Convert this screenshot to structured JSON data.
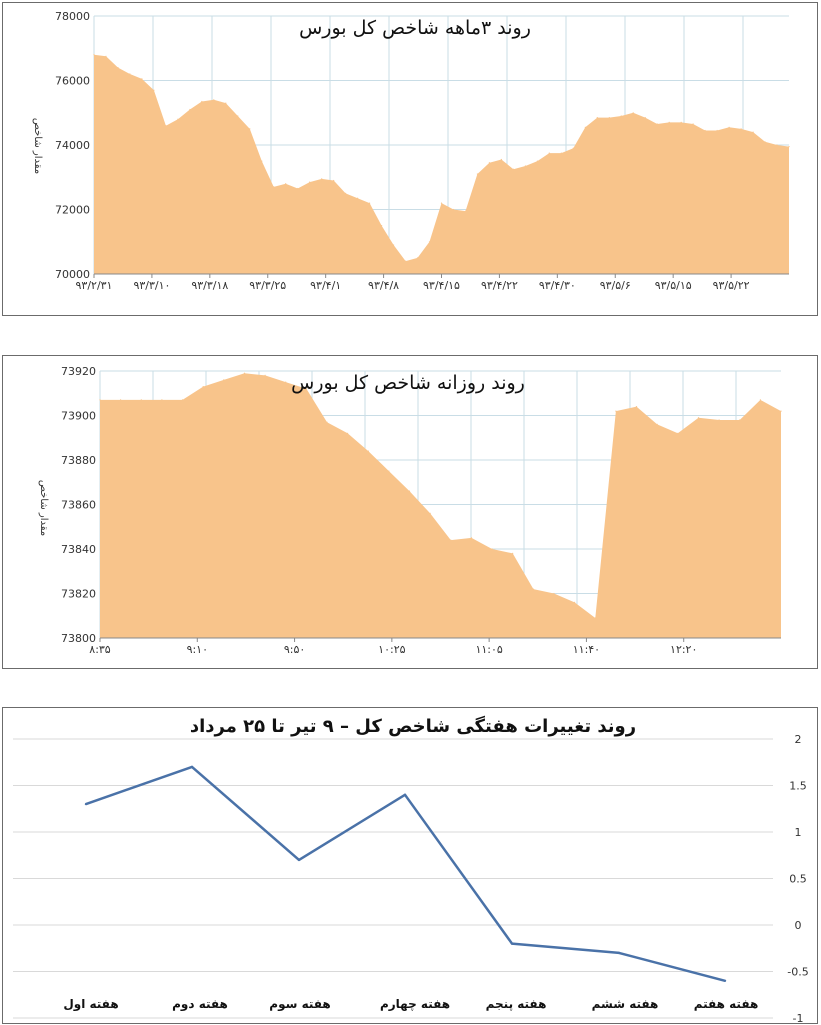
{
  "chart_data": [
    {
      "type": "area",
      "title": "روند ۳ماهه شاخص کل بورس",
      "ylabel": "مقدار شاخص",
      "xlabel": "",
      "ylim": [
        70000,
        78000
      ],
      "y_ticks": [
        "70000",
        "72000",
        "74000",
        "76000",
        "78000"
      ],
      "x_ticks": [
        "۹۳/۲/۳۱",
        "۹۳/۳/۱۰",
        "۹۳/۳/۱۸",
        "۹۳/۳/۲۵",
        "۹۳/۴/۱",
        "۹۳/۴/۸",
        "۹۳/۴/۱۵",
        "۹۳/۴/۲۲",
        "۹۳/۴/۳۰",
        "۹۳/۵/۶",
        "۹۳/۵/۱۵",
        "۹۳/۵/۲۲"
      ],
      "grid": true,
      "fill_color": "#f8c48b",
      "values": [
        76800,
        76750,
        76400,
        76200,
        76050,
        75700,
        74600,
        74800,
        75100,
        75350,
        75400,
        75300,
        74900,
        74500,
        73500,
        72700,
        72800,
        72650,
        72850,
        72950,
        72900,
        72500,
        72350,
        72200,
        71500,
        70900,
        70400,
        70500,
        71000,
        72200,
        72000,
        71950,
        73100,
        73450,
        73550,
        73250,
        73350,
        73500,
        73750,
        73750,
        73900,
        74550,
        74850,
        74850,
        74900,
        75000,
        74850,
        74650,
        74700,
        74700,
        74650,
        74450,
        74450,
        74550,
        74500,
        74400,
        74100,
        74000,
        73950
      ]
    },
    {
      "type": "area",
      "title": "روند روزانه شاخص کل بورس",
      "ylabel": "مقدار شاخص",
      "xlabel": "",
      "ylim": [
        73800,
        73920
      ],
      "y_ticks": [
        "73800",
        "73820",
        "73840",
        "73860",
        "73880",
        "73900",
        "73920"
      ],
      "x_ticks": [
        "۸:۳۵",
        "۹:۱۰",
        "۹:۵۰",
        "۱۰:۲۵",
        "۱۱:۰۵",
        "۱۱:۴۰",
        "۱۲:۲۰"
      ],
      "grid": true,
      "fill_color": "#f8c48b",
      "values": [
        73907,
        73907,
        73907,
        73907,
        73907,
        73913,
        73916,
        73919,
        73918,
        73915,
        73912,
        73897,
        73892,
        73884,
        73875,
        73866,
        73856,
        73844,
        73845,
        73840,
        73838,
        73822,
        73820,
        73816,
        73809,
        73902,
        73904,
        73896,
        73892,
        73899,
        73898,
        73898,
        73907,
        73902
      ]
    },
    {
      "type": "line",
      "title": "روند تغییرات هفتگی شاخص کل – ۹ تیر تا ۲۵ مرداد",
      "xlabel": "",
      "ylabel": "",
      "ylim": [
        -1,
        2
      ],
      "y_ticks": [
        "-1",
        "-0.5",
        "0",
        "0.5",
        "1",
        "1.5",
        "2"
      ],
      "categories": [
        "هفته اول",
        "هفته دوم",
        "هفته سوم",
        "هفته چهارم",
        "هفته پنجم",
        "هفته ششم",
        "هفته هفتم"
      ],
      "values": [
        1.3,
        1.7,
        0.7,
        1.4,
        -0.2,
        -0.3,
        -0.6
      ],
      "grid": true,
      "line_color": "#4a72a8"
    }
  ]
}
